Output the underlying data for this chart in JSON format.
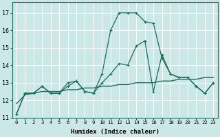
{
  "xlabel": "Humidex (Indice chaleur)",
  "bg_color": "#cce8e6",
  "grid_color": "#ffffff",
  "line_color": "#1a6b5a",
  "x_values": [
    0,
    1,
    2,
    3,
    4,
    5,
    6,
    7,
    8,
    9,
    10,
    11,
    12,
    13,
    14,
    15,
    16,
    17,
    18,
    19,
    20,
    21,
    22,
    23
  ],
  "line1_y": [
    11.2,
    12.4,
    12.4,
    12.8,
    12.4,
    12.4,
    13.0,
    13.1,
    12.5,
    12.4,
    13.5,
    16.0,
    17.0,
    17.0,
    17.0,
    16.5,
    16.4,
    14.4,
    13.5,
    13.3,
    13.3,
    12.8,
    12.4,
    13.0
  ],
  "line2_y": [
    11.2,
    12.4,
    12.4,
    12.8,
    12.4,
    12.4,
    12.8,
    13.1,
    12.5,
    12.4,
    13.0,
    13.5,
    14.1,
    14.0,
    15.1,
    15.4,
    12.5,
    14.6,
    13.5,
    13.3,
    13.3,
    12.8,
    12.4,
    13.0
  ],
  "line3_y": [
    11.8,
    12.3,
    12.4,
    12.5,
    12.5,
    12.5,
    12.6,
    12.6,
    12.7,
    12.7,
    12.8,
    12.8,
    12.9,
    12.9,
    13.0,
    13.0,
    13.0,
    13.1,
    13.1,
    13.2,
    13.2,
    13.2,
    13.3,
    13.3
  ],
  "ylim": [
    11,
    17.6
  ],
  "xlim": [
    -0.5,
    23.5
  ],
  "yticks": [
    11,
    12,
    13,
    14,
    15,
    16,
    17
  ],
  "xticks": [
    0,
    1,
    2,
    3,
    4,
    5,
    6,
    7,
    8,
    9,
    10,
    11,
    12,
    13,
    14,
    15,
    16,
    17,
    18,
    19,
    20,
    21,
    22,
    23
  ],
  "figsize": [
    3.2,
    2.0
  ],
  "dpi": 100
}
